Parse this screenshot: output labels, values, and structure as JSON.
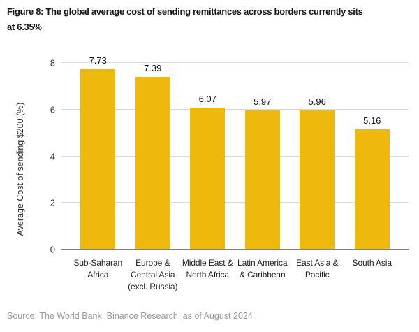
{
  "header": {
    "title_line1": "Figure 8: The global average cost of sending remittances across borders currently sits",
    "title_line2": "at 6.35%"
  },
  "chart_data": {
    "type": "bar",
    "title": "Figure 8: The global average cost of sending remittances across borders currently sits at 6.35%",
    "categories": [
      "Sub-Saharan Africa",
      "Europe & Central Asia (excl. Russia)",
      "Middle East & North Africa",
      "Latin America & Caribbean",
      "East Asia & Pacific",
      "South Asia"
    ],
    "category_lines": [
      [
        "Sub-Saharan",
        "Africa"
      ],
      [
        "Europe &",
        "Central Asia",
        "(excl. Russia)"
      ],
      [
        "Middle East &",
        "North Africa"
      ],
      [
        "Latin America",
        "& Caribbean"
      ],
      [
        "East Asia &",
        "Pacific"
      ],
      [
        "South Asia"
      ]
    ],
    "values": [
      7.73,
      7.39,
      6.07,
      5.97,
      5.96,
      5.16
    ],
    "value_labels": [
      "7.73",
      "7.39",
      "6.07",
      "5.97",
      "5.96",
      "5.16"
    ],
    "xlabel": "",
    "ylabel": "Average Cost of sending $200 (%)",
    "ylim": [
      0,
      8
    ],
    "yticks": [
      0,
      2,
      4,
      6,
      8
    ],
    "grid": true,
    "legend": "none",
    "bar_color": "#EFB80D",
    "gridline_color": "#D9D9D9",
    "axis_line_color": "#7F7F7F"
  },
  "footer": {
    "source": "Source: The World Bank, Binance Research, as of August 2024"
  }
}
